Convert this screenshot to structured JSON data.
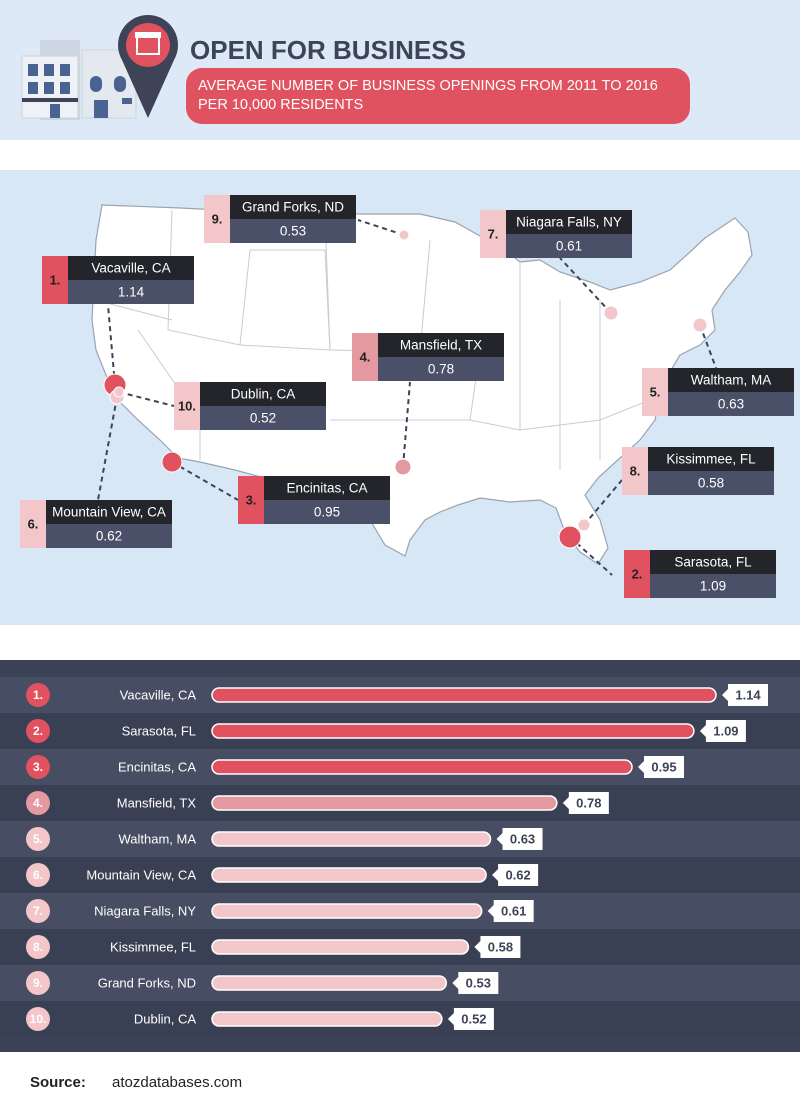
{
  "header": {
    "title": "OPEN FOR BUSINESS",
    "subtitle": "AVERAGE NUMBER OF BUSINESS OPENINGS FROM 2011 TO 2016 PER 10,000 RESIDENTS"
  },
  "chart_data": {
    "type": "bar",
    "ranks": [
      "1.",
      "2.",
      "3.",
      "4.",
      "5.",
      "6.",
      "7.",
      "8.",
      "9.",
      "10."
    ],
    "categories": [
      "Vacaville, CA",
      "Sarasota, FL",
      "Encinitas, CA",
      "Mansfield, TX",
      "Waltham, MA",
      "Mountain View, CA",
      "Niagara Falls, NY",
      "Kissimmee, FL",
      "Grand Forks, ND",
      "Dublin, CA"
    ],
    "values": [
      1.14,
      1.09,
      0.95,
      0.78,
      0.63,
      0.62,
      0.61,
      0.58,
      0.53,
      0.52
    ],
    "colors": [
      "#e05260",
      "#e05260",
      "#e05260",
      "#e3999f",
      "#f3c6c9",
      "#f3c6c9",
      "#f3c6c9",
      "#f3c6c9",
      "#f3c6c9",
      "#f3c6c9"
    ]
  },
  "source": {
    "label": "Source:",
    "text": "atozdatabases.com"
  }
}
